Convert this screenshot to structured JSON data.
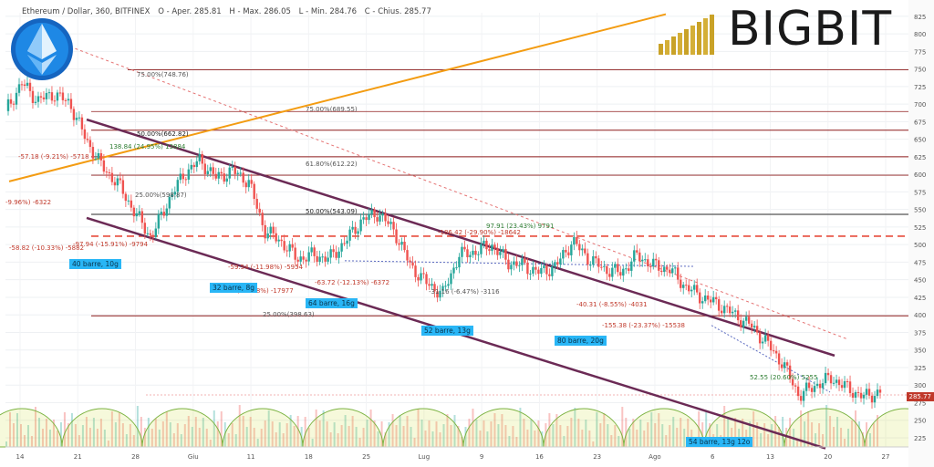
{
  "header": {
    "symbol": "Ethereum / Dollar, 360, BITFINEX",
    "open_label": "O - Aper. 285.81",
    "high_label": "H - Max. 286.05",
    "low_label": "L - Min. 284.76",
    "close_label": "C - Chius. 285.77",
    "badge_icon": "ethereum-icon"
  },
  "brand": {
    "name": "BIGBIT",
    "logo_icon": "gold-bars-icon"
  },
  "current_price": "285.77",
  "colors": {
    "up": "#26a69a",
    "down": "#ef5350",
    "channel": "#6b2a55",
    "trend": "#f39c12",
    "h_line": "#8e1b1b",
    "dashed": "#e74c3c"
  },
  "fib_labels": [
    {
      "text": "75.00%(748.76)"
    },
    {
      "text": "75.00%(689.55)"
    },
    {
      "text": "50.00%(662.82)"
    },
    {
      "text": "61.80%(612.22)"
    },
    {
      "text": "25.00%(598.87)"
    },
    {
      "text": "50.00%(543.09)"
    },
    {
      "text": "25.00%(398.63)"
    }
  ],
  "annotations": [
    {
      "text": "-57.18 (-9.21%) -5718"
    },
    {
      "text": "138.84 (24.95%) 13884"
    },
    {
      "text": "-9.96%) -6322"
    },
    {
      "text": "-58.82 (-10.33%) -5882"
    },
    {
      "text": "-97.94 (-15.91%) -9794"
    },
    {
      "text": "-59.54 (-11.98%) -5954"
    },
    {
      "text": "(-18.88%) -17977"
    },
    {
      "text": "-63.72 (-12.13%) -6372"
    },
    {
      "text": "-31.16 (-6.47%) -3116"
    },
    {
      "text": "97.91 (23.43%) 9791"
    },
    {
      "text": "-186.42 (-29.90%) -18642"
    },
    {
      "text": "-40.31 (-8.55%) -4031"
    },
    {
      "text": "-155.38 (-23.37%) -15538"
    },
    {
      "text": "52.55 (20.60%) 5255"
    }
  ],
  "boxes": [
    {
      "text": "40 barre, 10g"
    },
    {
      "text": "32 barre, 8g"
    },
    {
      "text": "64 barre, 16g"
    },
    {
      "text": "52 barre, 13g"
    },
    {
      "text": "80 barre, 20g"
    },
    {
      "text": "54 barre, 13g 12o"
    }
  ],
  "chart_data": {
    "type": "line",
    "title": "",
    "x_tick_labels": [
      "14",
      "21",
      "28",
      "Giu",
      "11",
      "18",
      "25",
      "Lug",
      "9",
      "16",
      "23",
      "Ago",
      "6",
      "13",
      "20",
      "27"
    ],
    "y_ticks": [
      225,
      250,
      275,
      300,
      325,
      350,
      375,
      400,
      425,
      450,
      475,
      500,
      525,
      550,
      575,
      600,
      625,
      650,
      675,
      700,
      725,
      750,
      775,
      800,
      825
    ],
    "ylim": [
      212,
      830
    ],
    "series": [
      {
        "x": [
          0,
          2,
          4,
          6,
          8,
          10,
          12,
          14,
          16,
          18,
          20,
          22,
          24,
          26,
          28,
          30,
          32,
          34,
          36,
          38,
          40,
          42,
          44,
          46,
          48,
          50,
          52,
          54,
          56,
          58,
          60,
          62,
          64,
          66,
          68,
          70,
          72,
          74,
          76,
          78,
          80,
          82,
          84,
          86,
          88,
          90,
          92,
          94,
          96,
          98,
          100,
          102,
          104,
          106,
          108
        ],
        "values": [
          690,
          730,
          705,
          715,
          700,
          648,
          610,
          585,
          545,
          510,
          560,
          600,
          620,
          595,
          605,
          590,
          520,
          505,
          480,
          485,
          480,
          505,
          535,
          545,
          520,
          470,
          445,
          430,
          485,
          490,
          500,
          475,
          470,
          460,
          470,
          505,
          480,
          465,
          460,
          485,
          470,
          465,
          440,
          425,
          415,
          400,
          385,
          360,
          330,
          285,
          300,
          310,
          295,
          283,
          290
        ]
      }
    ]
  }
}
